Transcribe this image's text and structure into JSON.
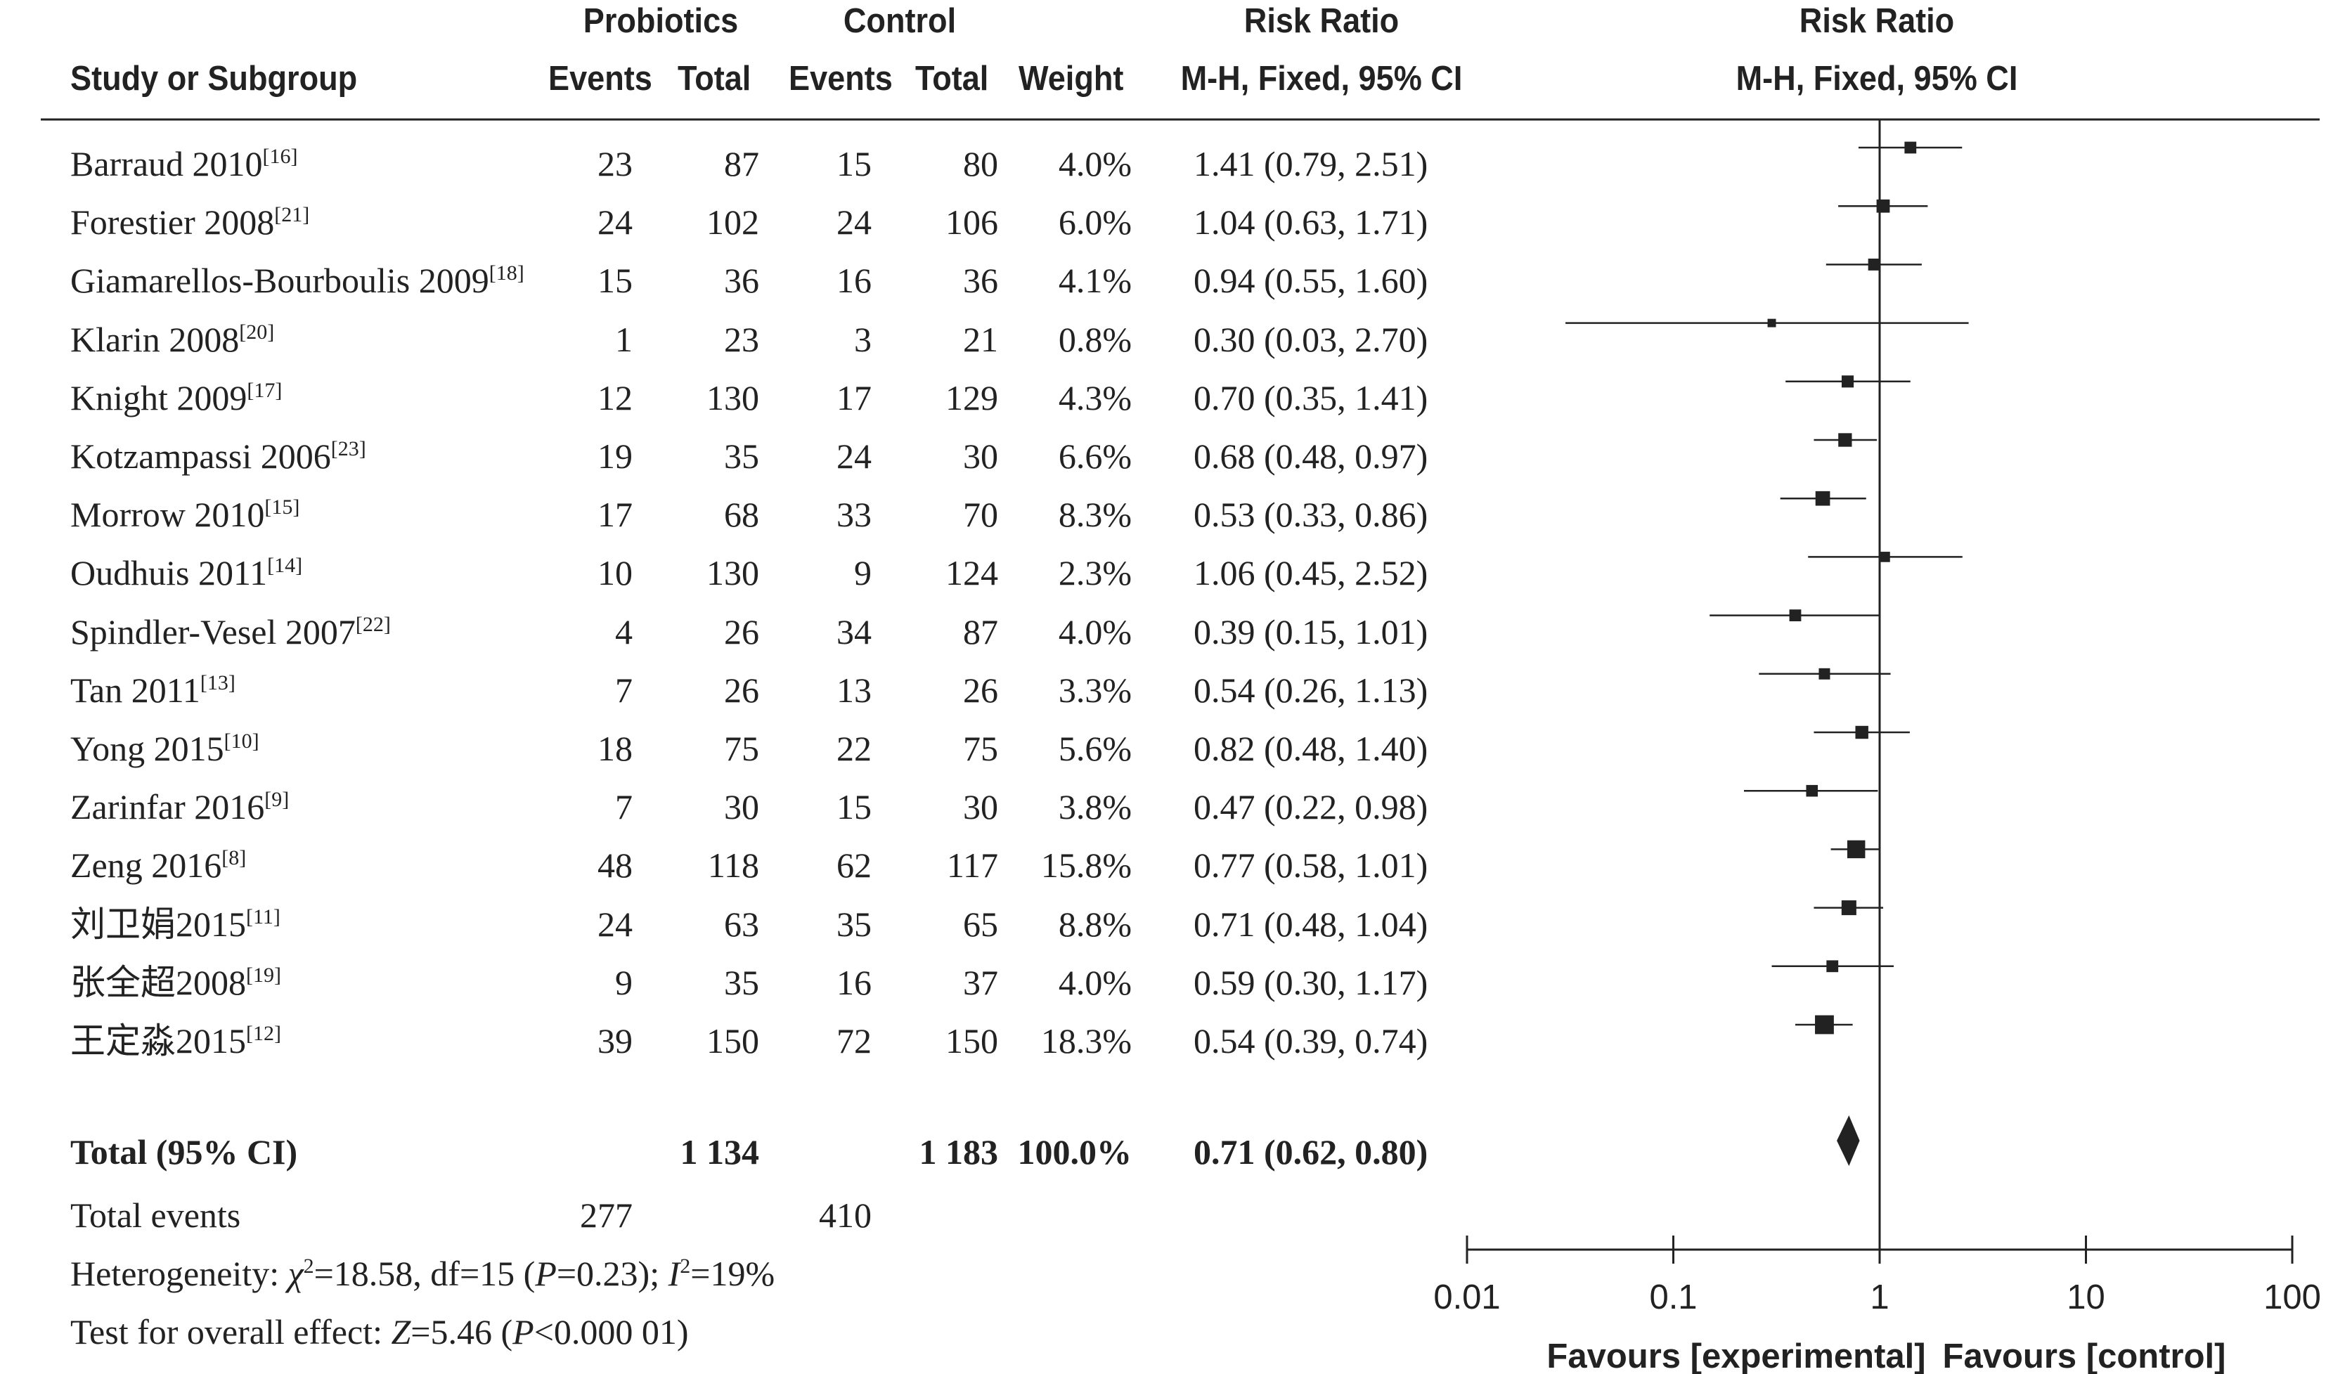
{
  "header": {
    "group1": "Probiotics",
    "group2": "Control",
    "col_study": "Study or Subgroup",
    "col_events1": "Events",
    "col_total1": "Total",
    "col_events2": "Events",
    "col_total2": "Total",
    "col_weight": "Weight",
    "rr_title": "Risk Ratio",
    "rr_method": "M-H, Fixed, 95% CI",
    "plot_title": "Risk Ratio",
    "plot_method": "M-H, Fixed, 95% CI"
  },
  "studies": [
    {
      "name": "Barraud 2010",
      "ref": "[16]",
      "e1": "23",
      "t1": "87",
      "e2": "15",
      "t2": "80",
      "weight": "4.0%",
      "ci_text": "1.41 (0.79, 2.51)",
      "rr": 1.41,
      "lo": 0.79,
      "hi": 2.51,
      "w": 4.0
    },
    {
      "name": "Forestier 2008",
      "ref": "[21]",
      "e1": "24",
      "t1": "102",
      "e2": "24",
      "t2": "106",
      "weight": "6.0%",
      "ci_text": "1.04 (0.63, 1.71)",
      "rr": 1.04,
      "lo": 0.63,
      "hi": 1.71,
      "w": 6.0
    },
    {
      "name": "Giamarellos-Bourboulis 2009",
      "ref": "[18]",
      "e1": "15",
      "t1": "36",
      "e2": "16",
      "t2": "36",
      "weight": "4.1%",
      "ci_text": "0.94 (0.55, 1.60)",
      "rr": 0.94,
      "lo": 0.55,
      "hi": 1.6,
      "w": 4.1
    },
    {
      "name": "Klarin 2008",
      "ref": "[20]",
      "e1": "1",
      "t1": "23",
      "e2": "3",
      "t2": "21",
      "weight": "0.8%",
      "ci_text": "0.30 (0.03, 2.70)",
      "rr": 0.3,
      "lo": 0.03,
      "hi": 2.7,
      "w": 0.8
    },
    {
      "name": "Knight 2009",
      "ref": "[17]",
      "e1": "12",
      "t1": "130",
      "e2": "17",
      "t2": "129",
      "weight": "4.3%",
      "ci_text": "0.70 (0.35, 1.41)",
      "rr": 0.7,
      "lo": 0.35,
      "hi": 1.41,
      "w": 4.3
    },
    {
      "name": "Kotzampassi 2006",
      "ref": "[23]",
      "e1": "19",
      "t1": "35",
      "e2": "24",
      "t2": "30",
      "weight": "6.6%",
      "ci_text": "0.68 (0.48, 0.97)",
      "rr": 0.68,
      "lo": 0.48,
      "hi": 0.97,
      "w": 6.6
    },
    {
      "name": "Morrow 2010",
      "ref": "[15]",
      "e1": "17",
      "t1": "68",
      "e2": "33",
      "t2": "70",
      "weight": "8.3%",
      "ci_text": "0.53 (0.33, 0.86)",
      "rr": 0.53,
      "lo": 0.33,
      "hi": 0.86,
      "w": 8.3
    },
    {
      "name": "Oudhuis 2011",
      "ref": "[14]",
      "e1": "10",
      "t1": "130",
      "e2": "9",
      "t2": "124",
      "weight": "2.3%",
      "ci_text": "1.06 (0.45, 2.52)",
      "rr": 1.06,
      "lo": 0.45,
      "hi": 2.52,
      "w": 2.3
    },
    {
      "name": "Spindler-Vesel 2007",
      "ref": "[22]",
      "e1": "4",
      "t1": "26",
      "e2": "34",
      "t2": "87",
      "weight": "4.0%",
      "ci_text": "0.39 (0.15, 1.01)",
      "rr": 0.39,
      "lo": 0.15,
      "hi": 1.01,
      "w": 4.0
    },
    {
      "name": "Tan 2011",
      "ref": "[13]",
      "e1": "7",
      "t1": "26",
      "e2": "13",
      "t2": "26",
      "weight": "3.3%",
      "ci_text": "0.54 (0.26, 1.13)",
      "rr": 0.54,
      "lo": 0.26,
      "hi": 1.13,
      "w": 3.3
    },
    {
      "name": "Yong 2015",
      "ref": "[10]",
      "e1": "18",
      "t1": "75",
      "e2": "22",
      "t2": "75",
      "weight": "5.6%",
      "ci_text": "0.82 (0.48, 1.40)",
      "rr": 0.82,
      "lo": 0.48,
      "hi": 1.4,
      "w": 5.6
    },
    {
      "name": "Zarinfar 2016",
      "ref": "[9]",
      "e1": "7",
      "t1": "30",
      "e2": "15",
      "t2": "30",
      "weight": "3.8%",
      "ci_text": "0.47 (0.22, 0.98)",
      "rr": 0.47,
      "lo": 0.22,
      "hi": 0.98,
      "w": 3.8
    },
    {
      "name": "Zeng 2016",
      "ref": "[8]",
      "e1": "48",
      "t1": "118",
      "e2": "62",
      "t2": "117",
      "weight": "15.8%",
      "ci_text": "0.77 (0.58, 1.01)",
      "rr": 0.77,
      "lo": 0.58,
      "hi": 1.01,
      "w": 15.8
    },
    {
      "name": "刘卫娟2015",
      "ref": "[11]",
      "e1": "24",
      "t1": "63",
      "e2": "35",
      "t2": "65",
      "weight": "8.8%",
      "ci_text": "0.71 (0.48, 1.04)",
      "rr": 0.71,
      "lo": 0.48,
      "hi": 1.04,
      "w": 8.8
    },
    {
      "name": "张全超2008",
      "ref": "[19]",
      "e1": "9",
      "t1": "35",
      "e2": "16",
      "t2": "37",
      "weight": "4.0%",
      "ci_text": "0.59 (0.30, 1.17)",
      "rr": 0.59,
      "lo": 0.3,
      "hi": 1.17,
      "w": 4.0
    },
    {
      "name": "王定淼2015",
      "ref": "[12]",
      "e1": "39",
      "t1": "150",
      "e2": "72",
      "t2": "150",
      "weight": "18.3%",
      "ci_text": "0.54 (0.39, 0.74)",
      "rr": 0.54,
      "lo": 0.39,
      "hi": 0.74,
      "w": 18.3
    }
  ],
  "total": {
    "label": "Total (95% CI)",
    "t1": "1 134",
    "t2": "1 183",
    "weight": "100.0%",
    "ci_text": "0.71 (0.62, 0.80)",
    "rr": 0.71,
    "lo": 0.62,
    "hi": 0.8
  },
  "total_events": {
    "label": "Total events",
    "e1": "277",
    "e2": "410"
  },
  "heterogeneity": {
    "prefix": "Heterogeneity: ",
    "chi_symbol": "χ",
    "chi_value": "=18.58, df=15 (",
    "p_symbol": "P",
    "p_value": "=0.23); ",
    "i_symbol": "I",
    "i_value": "=19%",
    "sup": "2"
  },
  "overall_effect": {
    "prefix": "Test for overall effect: ",
    "z_symbol": "Z",
    "z_value": "=5.46 (",
    "p_symbol": "P",
    "p_value": "<0.000 01)"
  },
  "chart_data": {
    "type": "forest",
    "x_scale": "log",
    "xlim": [
      0.01,
      100
    ],
    "ticks": [
      0.01,
      0.1,
      1,
      10,
      100
    ],
    "tick_labels": [
      "0.01",
      "0.1",
      "1",
      "10",
      "100"
    ],
    "favours_left": "Favours [experimental]",
    "favours_right": "Favours [control]",
    "reference_line": 1
  },
  "colors": {
    "ink": "#222222"
  }
}
